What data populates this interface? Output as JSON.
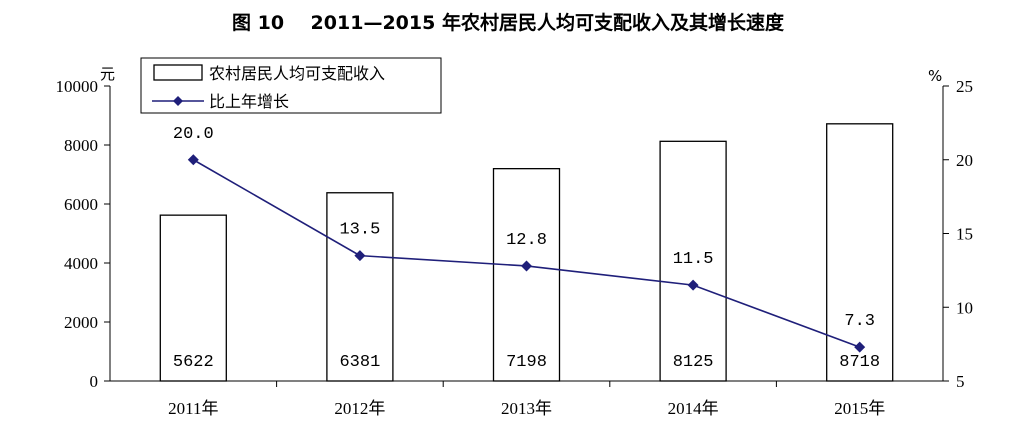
{
  "title": "图 10    2011—2015 年农村居民人均可支配收入及其增长速度",
  "chart_data": {
    "type": "bar",
    "categories": [
      "2011年",
      "2012年",
      "2013年",
      "2014年",
      "2015年"
    ],
    "series": [
      {
        "name": "农村居民人均可支配收入",
        "type": "bar",
        "axis": "left",
        "values": [
          5622,
          6381,
          7198,
          8125,
          8718
        ],
        "color": "#ffffff",
        "stroke": "#000000"
      },
      {
        "name": "比上年增长",
        "type": "line",
        "axis": "right",
        "values": [
          20.0,
          13.5,
          12.8,
          11.5,
          7.3
        ],
        "value_labels": [
          "20.0",
          "13.5",
          "12.8",
          "11.5",
          "7.3"
        ],
        "color": "#1f1f7a",
        "marker": "diamond"
      }
    ],
    "y_left": {
      "unit": "元",
      "ylim": [
        0,
        10000
      ],
      "ticks": [
        0,
        2000,
        4000,
        6000,
        8000,
        10000
      ]
    },
    "y_right": {
      "unit": "%",
      "ylim": [
        5,
        25
      ],
      "ticks": [
        5,
        10,
        15,
        20,
        25
      ]
    },
    "legend": {
      "placement": "top-left",
      "entries": [
        "农村居民人均可支配收入",
        "比上年增长"
      ]
    },
    "grid": false
  }
}
